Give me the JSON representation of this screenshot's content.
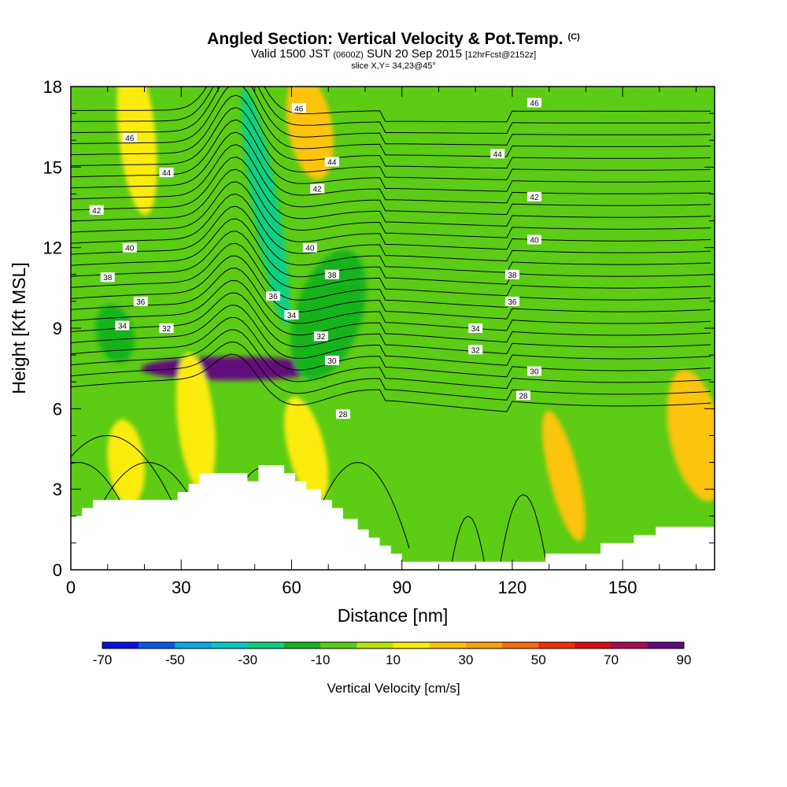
{
  "header": {
    "title": "Angled Section: Vertical Velocity & Pot.Temp.",
    "title_tag": "(C)",
    "subtitle_a": "Valid 1500 JST",
    "subtitle_b": "(0600Z)",
    "subtitle_c": "SUN 20 Sep 2015",
    "subtitle_d": "[12hrFcst@2152z]",
    "slice": "slice X,Y= 34,23@45°"
  },
  "chart_data": {
    "type": "heatmap",
    "xlabel": "Distance [nm]",
    "ylabel": "Height [Kft MSL]",
    "xlim": [
      0,
      175
    ],
    "ylim": [
      0,
      18
    ],
    "x_ticks": [
      "0",
      "30",
      "60",
      "90",
      "120",
      "150"
    ],
    "x_tick_values": [
      0,
      30,
      60,
      90,
      120,
      150
    ],
    "y_ticks": [
      "0",
      "3",
      "6",
      "9",
      "12",
      "15",
      "18"
    ],
    "y_tick_values": [
      0,
      3,
      6,
      9,
      12,
      15,
      18
    ],
    "colorbar": {
      "title": "Vertical Velocity [cm/s]",
      "levels": [
        -70,
        -60,
        -50,
        -40,
        -30,
        -20,
        -10,
        0,
        10,
        20,
        30,
        40,
        50,
        60,
        70,
        80,
        90
      ],
      "labels": [
        "-70",
        "-50",
        "-30",
        "-10",
        "10",
        "30",
        "50",
        "70",
        "90"
      ],
      "colors": [
        "#0a10e6",
        "#0a5ae8",
        "#08a8e8",
        "#08c8c8",
        "#10d080",
        "#14b41c",
        "#5ccc14",
        "#bce40c",
        "#fcec0a",
        "#fcc40a",
        "#fca00a",
        "#fc6a0a",
        "#f42c0c",
        "#d80a14",
        "#a80a52",
        "#62087c"
      ]
    },
    "isentropes": [
      {
        "label": "28",
        "x": 74,
        "y": 5.8
      },
      {
        "label": "28",
        "x": 123,
        "y": 6.5
      },
      {
        "label": "30",
        "x": 71,
        "y": 7.8
      },
      {
        "label": "30",
        "x": 126,
        "y": 7.4
      },
      {
        "label": "32",
        "x": 26,
        "y": 9.0
      },
      {
        "label": "32",
        "x": 68,
        "y": 8.7
      },
      {
        "label": "32",
        "x": 110,
        "y": 8.2
      },
      {
        "label": "34",
        "x": 14,
        "y": 9.1
      },
      {
        "label": "34",
        "x": 60,
        "y": 9.5
      },
      {
        "label": "34",
        "x": 110,
        "y": 9.0
      },
      {
        "label": "36",
        "x": 19,
        "y": 10.0
      },
      {
        "label": "36",
        "x": 55,
        "y": 10.2
      },
      {
        "label": "36",
        "x": 120,
        "y": 10.0
      },
      {
        "label": "38",
        "x": 10,
        "y": 10.9
      },
      {
        "label": "38",
        "x": 71,
        "y": 11.0
      },
      {
        "label": "38",
        "x": 120,
        "y": 11.0
      },
      {
        "label": "40",
        "x": 16,
        "y": 12.0
      },
      {
        "label": "40",
        "x": 65,
        "y": 12.0
      },
      {
        "label": "40",
        "x": 126,
        "y": 12.3
      },
      {
        "label": "42",
        "x": 7,
        "y": 13.4
      },
      {
        "label": "42",
        "x": 67,
        "y": 14.2
      },
      {
        "label": "42",
        "x": 126,
        "y": 13.9
      },
      {
        "label": "44",
        "x": 26,
        "y": 14.8
      },
      {
        "label": "44",
        "x": 71,
        "y": 15.2
      },
      {
        "label": "44",
        "x": 116,
        "y": 15.5
      },
      {
        "label": "46",
        "x": 16,
        "y": 16.1
      },
      {
        "label": "46",
        "x": 62,
        "y": 17.2
      },
      {
        "label": "46",
        "x": 126,
        "y": 17.4
      }
    ],
    "terrain": [
      [
        0,
        2.0
      ],
      [
        3,
        2.0
      ],
      [
        3,
        2.3
      ],
      [
        6,
        2.3
      ],
      [
        6,
        2.6
      ],
      [
        29,
        2.6
      ],
      [
        29,
        2.9
      ],
      [
        32,
        2.9
      ],
      [
        32,
        3.2
      ],
      [
        35,
        3.2
      ],
      [
        35,
        3.6
      ],
      [
        48,
        3.6
      ],
      [
        48,
        3.3
      ],
      [
        51,
        3.3
      ],
      [
        51,
        3.9
      ],
      [
        58,
        3.9
      ],
      [
        58,
        3.6
      ],
      [
        61,
        3.6
      ],
      [
        61,
        3.3
      ],
      [
        64,
        3.3
      ],
      [
        64,
        3.0
      ],
      [
        68,
        3.0
      ],
      [
        68,
        2.6
      ],
      [
        71,
        2.6
      ],
      [
        71,
        2.3
      ],
      [
        74,
        2.3
      ],
      [
        74,
        1.9
      ],
      [
        78,
        1.9
      ],
      [
        78,
        1.5
      ],
      [
        81,
        1.5
      ],
      [
        81,
        1.2
      ],
      [
        84,
        1.2
      ],
      [
        84,
        0.9
      ],
      [
        87,
        0.9
      ],
      [
        87,
        0.6
      ],
      [
        90,
        0.6
      ],
      [
        90,
        0.3
      ],
      [
        129,
        0.3
      ],
      [
        129,
        0.6
      ],
      [
        144,
        0.6
      ],
      [
        144,
        1.0
      ],
      [
        153,
        1.0
      ],
      [
        153,
        1.3
      ],
      [
        159,
        1.3
      ],
      [
        159,
        1.6
      ],
      [
        175,
        1.6
      ]
    ]
  }
}
